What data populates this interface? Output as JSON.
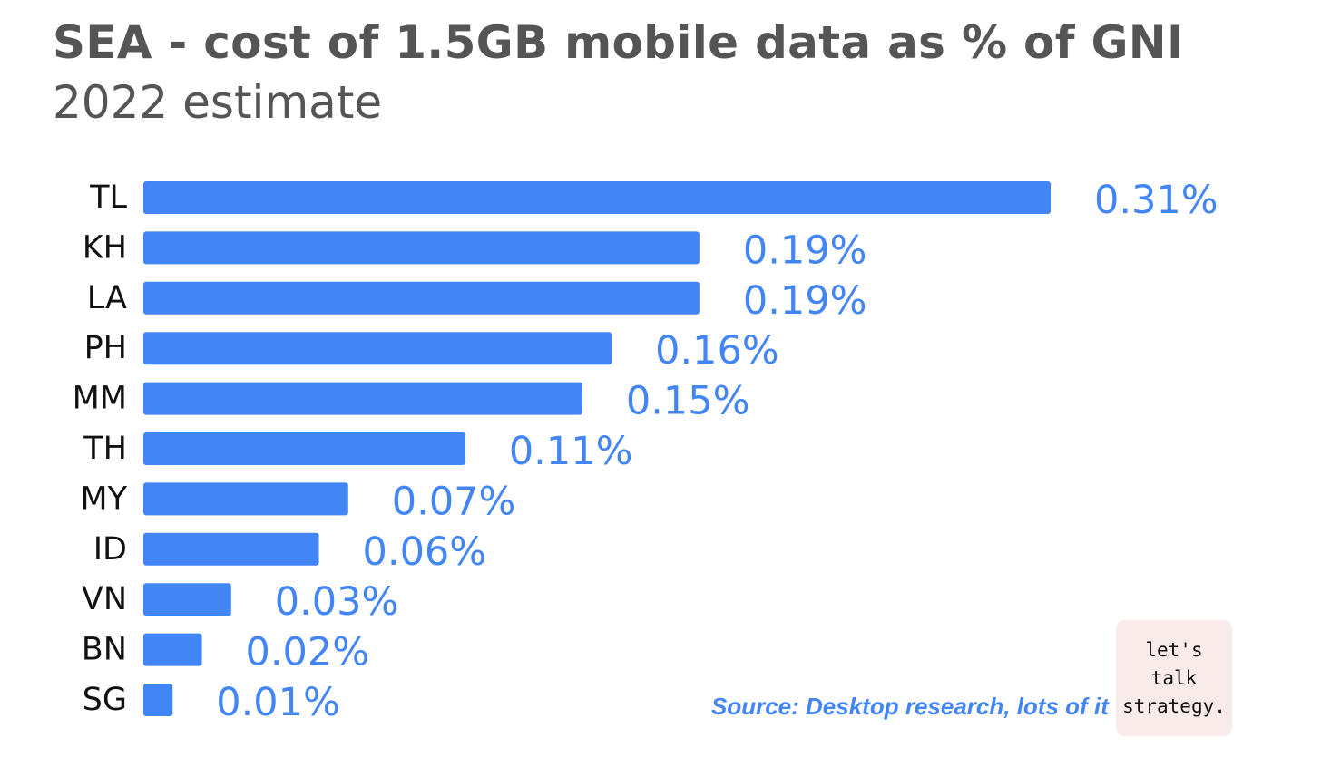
{
  "chart_data": {
    "type": "bar",
    "orientation": "horizontal",
    "title": "SEA - cost of 1.5GB mobile data as % of GNI",
    "subtitle": "2022 estimate",
    "categories": [
      "TL",
      "KH",
      "LA",
      "PH",
      "MM",
      "TH",
      "MY",
      "ID",
      "VN",
      "BN",
      "SG"
    ],
    "values": [
      0.31,
      0.19,
      0.19,
      0.16,
      0.15,
      0.11,
      0.07,
      0.06,
      0.03,
      0.02,
      0.01
    ],
    "data_labels": [
      "0.31%",
      "0.19%",
      "0.19%",
      "0.16%",
      "0.15%",
      "0.11%",
      "0.07%",
      "0.06%",
      "0.03%",
      "0.02%",
      "0.01%"
    ],
    "bar_color": "#4285f4",
    "label_color": "#4285f4",
    "grid": false,
    "legend": "none",
    "source": "Source: Desktop research, lots of it"
  },
  "badge": {
    "text": "let's\ntalk\nstrategy."
  }
}
